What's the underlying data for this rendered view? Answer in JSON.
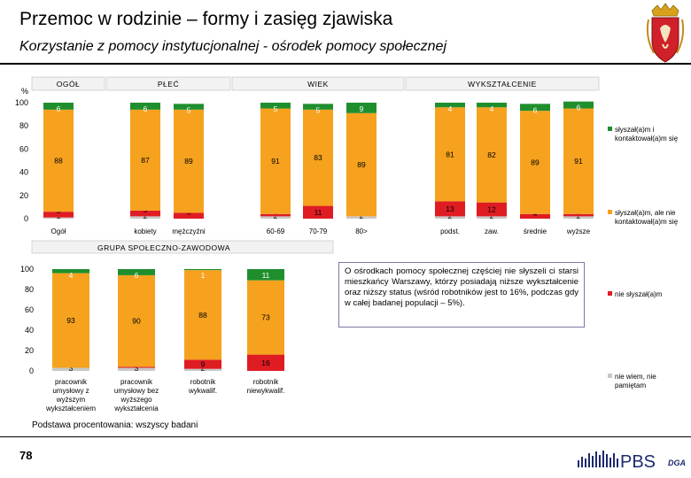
{
  "page": {
    "title": "Przemoc w rodzinie – formy i zasięg zjawiska",
    "subtitle": "Korzystanie z pomocy instytucjonalnej - ośrodek pomocy społecznej",
    "page_number": "78",
    "footnote": "Podstawa procentowania: wszyscy badani",
    "info_text": "O ośrodkach pomocy społecznej częściej nie słyszeli ci starsi mieszkańcy Warszawy, którzy posiadają niższe wykształcenie oraz niższy status (wśród robotników jest to 16%, podczas gdy w całej badanej populacji – 5%).",
    "logo_text": "PBS",
    "logo_suffix": "DGA"
  },
  "colors": {
    "heard_used": "#1f8f2e",
    "heard_not_used": "#f6a21e",
    "not_heard": "#e01c23",
    "dont_know": "#c8c8c8",
    "header_fill": "#f2f2f2"
  },
  "chart_data": [
    {
      "type": "bar",
      "stacked": true,
      "ylabel": "%",
      "ylim": [
        0,
        100
      ],
      "yticks": [
        0,
        20,
        40,
        60,
        80,
        100
      ],
      "groups": [
        {
          "label": "OGÓŁ",
          "categories": [
            "Ogół"
          ]
        },
        {
          "label": "PŁEĆ",
          "categories": [
            "kobiety",
            "mężczyźni"
          ]
        },
        {
          "label": "WIEK",
          "categories": [
            "60-69",
            "70-79",
            "80>"
          ]
        },
        {
          "label": "WYKSZTAŁCENIE",
          "categories": [
            "podst.",
            "zaw.",
            "średnie",
            "wyższe"
          ]
        }
      ],
      "categories": [
        "Ogół",
        "kobiety",
        "mężczyźni",
        "60-69",
        "70-79",
        "80>",
        "podst.",
        "zaw.",
        "średnie",
        "wyższe"
      ],
      "series": [
        {
          "name": "nie wiem, nie pamiętam",
          "key": "dont_know",
          "values": [
            1,
            2,
            0,
            2,
            0,
            2,
            2,
            2,
            0,
            2
          ]
        },
        {
          "name": "nie słyszał(a)m",
          "key": "not_heard",
          "values": [
            5,
            5,
            5,
            2,
            11,
            0,
            13,
            12,
            4,
            2
          ]
        },
        {
          "name": "słyszał(a)m, ale nie kontaktował(a)m się",
          "key": "heard_not_used",
          "values": [
            88,
            87,
            89,
            91,
            83,
            89,
            81,
            82,
            89,
            91
          ]
        },
        {
          "name": "słyszał(a)m i kontaktował(a)m się",
          "key": "heard_used",
          "values": [
            6,
            6,
            5,
            5,
            5,
            9,
            4,
            4,
            6,
            6
          ]
        }
      ],
      "labels": {
        "dont_know": [
          "1",
          "2",
          "",
          "2",
          "",
          "2",
          "2",
          "2",
          "",
          "2"
        ],
        "not_heard": [
          "5",
          "5",
          "5",
          "",
          "11",
          "",
          "13",
          "12",
          "4",
          ""
        ],
        "heard_not_used": [
          "88",
          "87",
          "89",
          "91",
          "83",
          "89",
          "81",
          "82",
          "89",
          "91"
        ],
        "heard_used": [
          "6",
          "6",
          "5",
          "5",
          "5",
          "9",
          "4",
          "4",
          "6",
          "6"
        ]
      },
      "legend": "right"
    },
    {
      "type": "bar",
      "stacked": true,
      "ylim": [
        0,
        100
      ],
      "yticks": [
        0,
        20,
        40,
        60,
        80,
        100
      ],
      "group_label": "GRUPA SPOŁECZNO-ZAWODOWA",
      "categories": [
        "pracownik umysłowy z wyższym wykształceniem",
        "pracownik umysłowy bez wyższego wykształcenia",
        "robotnik wykwalif.",
        "robotnik niewykwalif."
      ],
      "category_lines": [
        [
          "pracownik",
          "umysłowy z",
          "wyższym",
          "wykształceniem"
        ],
        [
          "pracownik",
          "umysłowy bez",
          "wyższego",
          "wykształcenia"
        ],
        [
          "robotnik",
          "wykwalif."
        ],
        [
          "robotnik",
          "niewykwalif."
        ]
      ],
      "series": [
        {
          "name": "nie wiem, nie pamiętam",
          "key": "dont_know",
          "values": [
            3,
            3,
            2,
            0
          ]
        },
        {
          "name": "nie słyszał(a)m",
          "key": "not_heard",
          "values": [
            0,
            1,
            9,
            16
          ]
        },
        {
          "name": "słyszał(a)m, ale nie kontaktował(a)m się",
          "key": "heard_not_used",
          "values": [
            93,
            90,
            88,
            73
          ]
        },
        {
          "name": "słyszał(a)m i kontaktował(a)m się",
          "key": "heard_used",
          "values": [
            4,
            6,
            1,
            11
          ]
        }
      ],
      "labels": {
        "dont_know": [
          "3",
          "3",
          "2",
          ""
        ],
        "not_heard": [
          "",
          "",
          "9",
          "16"
        ],
        "heard_not_used": [
          "93",
          "90",
          "88",
          "73"
        ],
        "heard_used": [
          "4",
          "6",
          "1",
          "11"
        ]
      }
    }
  ],
  "legend_items": [
    {
      "key": "heard_used",
      "text": "słyszał(a)m i kontaktował(a)m się"
    },
    {
      "key": "heard_not_used",
      "text": "słyszał(a)m, ale nie kontaktował(a)m się"
    },
    {
      "key": "not_heard",
      "text": "nie słyszał(a)m"
    },
    {
      "key": "dont_know",
      "text": "nie wiem, nie pamiętam"
    }
  ]
}
